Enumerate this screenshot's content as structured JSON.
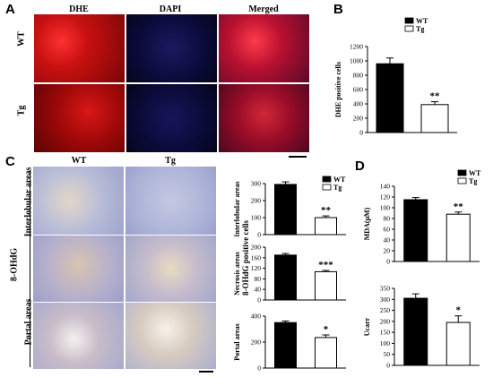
{
  "panels": {
    "a": {
      "letter": "A",
      "columns": [
        "DHE",
        "DAPI",
        "Merged"
      ],
      "rows": [
        "WT",
        "Tg"
      ]
    },
    "b": {
      "letter": "B"
    },
    "c": {
      "letter": "C",
      "columns": [
        "WT",
        "Tg"
      ],
      "group_label": "8-OHdG",
      "row_labels": [
        "Interlobular areas",
        "Portal areas"
      ]
    },
    "d": {
      "letter": "D"
    }
  },
  "colors": {
    "wt": "#000000",
    "tg": "#ffffff",
    "dhe": "#c01010",
    "dapi": "#0a0a3a",
    "ihc": "#b8bcd8"
  },
  "chart_data": [
    {
      "id": "B",
      "type": "bar",
      "categories": [
        "WT",
        "Tg"
      ],
      "values": [
        960,
        390
      ],
      "errors": [
        80,
        40
      ],
      "ylabel": "DHE  positive  cells",
      "ylim": [
        0,
        1200
      ],
      "yticks": [
        "0",
        "200",
        "400",
        "600",
        "800",
        "1000",
        "1200"
      ],
      "legend": [
        "WT",
        "Tg"
      ],
      "annotations": [
        "",
        "**"
      ]
    },
    {
      "id": "C1",
      "type": "bar",
      "categories": [
        "WT",
        "Tg"
      ],
      "values": [
        295,
        100
      ],
      "errors": [
        15,
        10
      ],
      "ylabel": "Interlobular areas",
      "ylim": [
        0,
        300
      ],
      "yticks": [
        "0",
        "100",
        "200",
        "300"
      ],
      "legend": [
        "WT",
        "Tg"
      ],
      "annotations": [
        "",
        "**"
      ]
    },
    {
      "id": "C2",
      "type": "bar",
      "categories": [
        "WT",
        "Tg"
      ],
      "values": [
        170,
        107
      ],
      "errors": [
        6,
        5
      ],
      "ylabel": "Necrosis areas",
      "ylim": [
        0,
        200
      ],
      "yticks": [
        "0",
        "40",
        "80",
        "120",
        "160",
        "200"
      ],
      "annotations": [
        "",
        "***"
      ],
      "shared_ylabel": "8-OHdG  positive  cells"
    },
    {
      "id": "C3",
      "type": "bar",
      "categories": [
        "WT",
        "Tg"
      ],
      "values": [
        350,
        235
      ],
      "errors": [
        12,
        20
      ],
      "ylabel": "Portal areas",
      "ylim": [
        0,
        400
      ],
      "yticks": [
        "0",
        "200",
        "400"
      ],
      "annotations": [
        "",
        "*"
      ]
    },
    {
      "id": "D1",
      "type": "bar",
      "categories": [
        "WT",
        "Tg"
      ],
      "values": [
        115,
        88
      ],
      "errors": [
        4,
        4
      ],
      "ylabel": "MDA(μM)",
      "ylim": [
        0,
        140
      ],
      "yticks": [
        "0",
        "20",
        "40",
        "60",
        "80",
        "100",
        "120",
        "140"
      ],
      "legend": [
        "WT",
        "Tg"
      ],
      "annotations": [
        "",
        "**"
      ]
    },
    {
      "id": "D2",
      "type": "bar",
      "categories": [
        "WT",
        "Tg"
      ],
      "values": [
        305,
        195
      ],
      "errors": [
        20,
        30
      ],
      "ylabel": "Ucarr",
      "ylim": [
        0,
        350
      ],
      "yticks": [
        "0",
        "50",
        "100",
        "150",
        "200",
        "250",
        "300",
        "350"
      ],
      "annotations": [
        "",
        "*"
      ]
    }
  ]
}
